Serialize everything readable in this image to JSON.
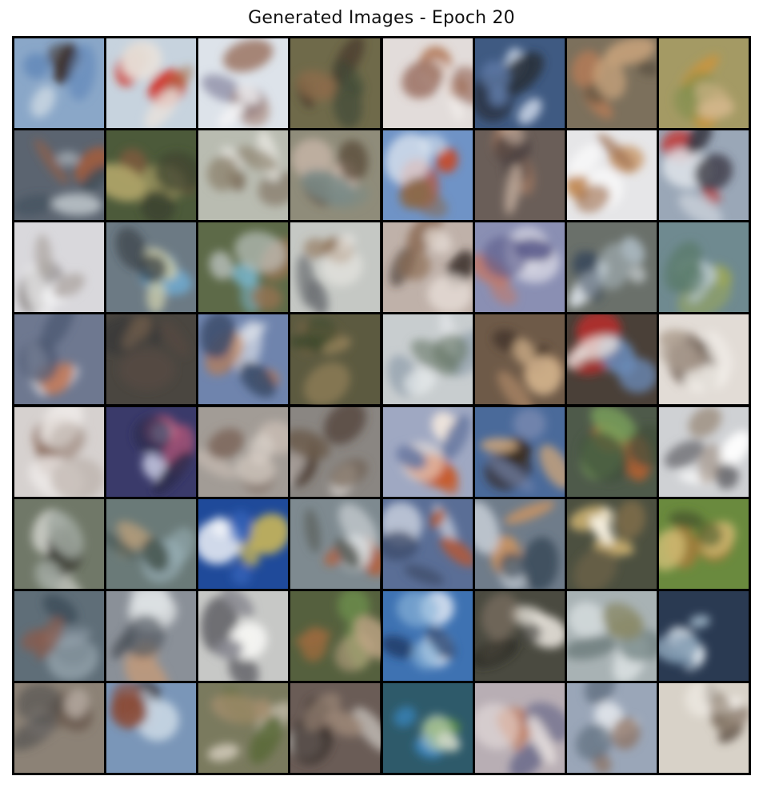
{
  "title": "Generated Images - Epoch 20",
  "grid": {
    "rows": 8,
    "cols": 8,
    "tiles": [
      {
        "bg": "#8aa7c8",
        "blobs": [
          "#c9d6e2",
          "#3b2f2a",
          "#5e85b8"
        ]
      },
      {
        "bg": "#c7d3de",
        "blobs": [
          "#d22a1c",
          "#a87047",
          "#e8e2dc"
        ]
      },
      {
        "bg": "#dde3ea",
        "blobs": [
          "#8f8ea8",
          "#a07a6a",
          "#f2f2f4"
        ]
      },
      {
        "bg": "#6f6a4a",
        "blobs": [
          "#4b3c2f",
          "#8c6b4a",
          "#3e4a36"
        ]
      },
      {
        "bg": "#e2dcda",
        "blobs": [
          "#b27653",
          "#f4f0ee",
          "#8b5a48"
        ]
      },
      {
        "bg": "#3f5a82",
        "blobs": [
          "#c8d4e6",
          "#2a2f3a",
          "#5f7ba8"
        ]
      },
      {
        "bg": "#7c705c",
        "blobs": [
          "#b07a56",
          "#5a5040",
          "#c9a47c"
        ]
      },
      {
        "bg": "#a49a64",
        "blobs": [
          "#c8953e",
          "#7e8e4a",
          "#d1b68a"
        ]
      },
      {
        "bg": "#5b6470",
        "blobs": [
          "#9f5c3c",
          "#3d4d5a",
          "#b8c0c6"
        ]
      },
      {
        "bg": "#4c5a3a",
        "blobs": [
          "#7a5a3e",
          "#b2a66a",
          "#3a4230"
        ]
      },
      {
        "bg": "#b9bcb1",
        "blobs": [
          "#7b6b5a",
          "#e4e2dc",
          "#8e8470"
        ]
      },
      {
        "bg": "#8f8c7a",
        "blobs": [
          "#d8c2b4",
          "#5a4a3a",
          "#7a8a86"
        ]
      },
      {
        "bg": "#6f93c6",
        "blobs": [
          "#c54a2a",
          "#e6ecf3",
          "#8a6a4a"
        ]
      },
      {
        "bg": "#6a5e58",
        "blobs": [
          "#a57a62",
          "#4a4040",
          "#c9b3a1"
        ]
      },
      {
        "bg": "#e6e6e8",
        "blobs": [
          "#c28a55",
          "#ffffff",
          "#a07050"
        ]
      },
      {
        "bg": "#9aa7b7",
        "blobs": [
          "#c92a22",
          "#e0e4ea",
          "#3b3a44"
        ]
      },
      {
        "bg": "#d9d8dc",
        "blobs": [
          "#7f7a78",
          "#f2f2f4",
          "#b0aaa6"
        ]
      },
      {
        "bg": "#6c7a84",
        "blobs": [
          "#6fb0d9",
          "#c6c8aa",
          "#2f3438"
        ]
      },
      {
        "bg": "#5d6a48",
        "blobs": [
          "#7ab8d0",
          "#9a7250",
          "#cfd6d8"
        ]
      },
      {
        "bg": "#c5c8c4",
        "blobs": [
          "#8a6a4c",
          "#eceae6",
          "#6b6e72"
        ]
      },
      {
        "bg": "#bfb1a9",
        "blobs": [
          "#3a2f28",
          "#8a6a52",
          "#e6dcd6"
        ]
      },
      {
        "bg": "#8a8fb3",
        "blobs": [
          "#c27a6a",
          "#e8e6ee",
          "#5a5a8a"
        ]
      },
      {
        "bg": "#6a706a",
        "blobs": [
          "#dde4ea",
          "#3b4a5c",
          "#aab8c0"
        ]
      },
      {
        "bg": "#6f8a90",
        "blobs": [
          "#9aa65a",
          "#b8c8ce",
          "#5a7a6a"
        ]
      },
      {
        "bg": "#6e7890",
        "blobs": [
          "#e9eef4",
          "#c07a5a",
          "#4a5670"
        ]
      },
      {
        "bg": "#4a4640",
        "blobs": [
          "#5a4a42",
          "#3a3a38",
          "#6a5a4a"
        ]
      },
      {
        "bg": "#6f84ad",
        "blobs": [
          "#e5e9ef",
          "#c27b4a",
          "#3b4c6a"
        ]
      },
      {
        "bg": "#5c5a40",
        "blobs": [
          "#8a6e4a",
          "#3e4a2e",
          "#a08a60"
        ]
      },
      {
        "bg": "#c8cdcf",
        "blobs": [
          "#8a9aa8",
          "#e9ecee",
          "#6a7a6a"
        ]
      },
      {
        "bg": "#6e5a48",
        "blobs": [
          "#b68e6a",
          "#4a3a2e",
          "#d0b08a"
        ]
      },
      {
        "bg": "#4a4038",
        "blobs": [
          "#d02a2a",
          "#6a8ab8",
          "#e4e0dc"
        ]
      },
      {
        "bg": "#e2dcd6",
        "blobs": [
          "#6a5a4e",
          "#f4f0ec",
          "#b2a496"
        ]
      },
      {
        "bg": "#d6d1cf",
        "blobs": [
          "#8a6a5a",
          "#f0ecea",
          "#b5aaa4"
        ]
      },
      {
        "bg": "#3a3a6a",
        "blobs": [
          "#c05a7a",
          "#e2e4f8",
          "#2a2a4a"
        ]
      },
      {
        "bg": "#a29c96",
        "blobs": [
          "#c9bdb4",
          "#7e6a5e",
          "#d8d0c8"
        ]
      },
      {
        "bg": "#8a8682",
        "blobs": [
          "#4a3a30",
          "#d8d4d0",
          "#6a5a4a"
        ]
      },
      {
        "bg": "#9fa8c2",
        "blobs": [
          "#c85a2a",
          "#f0e6dc",
          "#6a7aa2"
        ]
      },
      {
        "bg": "#4a6a9a",
        "blobs": [
          "#3a2a20",
          "#c9a37a",
          "#7a8ab0"
        ]
      },
      {
        "bg": "#4e5a4a",
        "blobs": [
          "#d0622a",
          "#7aa05a",
          "#3e4e3a"
        ]
      },
      {
        "bg": "#cfd1d4",
        "blobs": [
          "#ffffff",
          "#6a6a6e",
          "#9a8a7a"
        ]
      },
      {
        "bg": "#707868",
        "blobs": [
          "#e6e6e2",
          "#3a3a34",
          "#a0a8a0"
        ]
      },
      {
        "bg": "#6a7a78",
        "blobs": [
          "#c2a27a",
          "#9ab0b8",
          "#4a5a56"
        ]
      },
      {
        "bg": "#1f4a9a",
        "blobs": [
          "#f2d04a",
          "#ffffff",
          "#3a6ac2"
        ]
      },
      {
        "bg": "#7e8a90",
        "blobs": [
          "#c0582a",
          "#d6dcde",
          "#5a5e5a"
        ]
      },
      {
        "bg": "#5a6e96",
        "blobs": [
          "#d8dee8",
          "#b05a3a",
          "#3e4c6a"
        ]
      },
      {
        "bg": "#6f7c8a",
        "blobs": [
          "#e09a5a",
          "#c9d0d8",
          "#3a4a5a"
        ]
      },
      {
        "bg": "#4c5040",
        "blobs": [
          "#e8c67a",
          "#f6f0e0",
          "#7a6a4a"
        ]
      },
      {
        "bg": "#6a8a3e",
        "blobs": [
          "#b07a3a",
          "#d6c27a",
          "#4a5a2e"
        ]
      },
      {
        "bg": "#5f6e78",
        "blobs": [
          "#3a4a56",
          "#a0aeb8",
          "#8a5a4a"
        ]
      },
      {
        "bg": "#8a9098",
        "blobs": [
          "#e0e4e6",
          "#c29a7a",
          "#4a5058"
        ]
      },
      {
        "bg": "#c7c8c6",
        "blobs": [
          "#5a5a60",
          "#f4f4f2",
          "#8a8a92"
        ]
      },
      {
        "bg": "#55603e",
        "blobs": [
          "#9a6a3e",
          "#6a8a4a",
          "#c2a888"
        ]
      },
      {
        "bg": "#3e72b2",
        "blobs": [
          "#dce6f2",
          "#1e3a66",
          "#8ab4d8"
        ]
      },
      {
        "bg": "#4a4a40",
        "blobs": [
          "#e8e4dc",
          "#8a7a6a",
          "#2a2a26"
        ]
      },
      {
        "bg": "#a8b2b4",
        "blobs": [
          "#d8dee0",
          "#6a7a7a",
          "#8a8a6a"
        ]
      },
      {
        "bg": "#2a3a52",
        "blobs": [
          "#e6eef4",
          "#3a5a7a",
          "#9ab0c2"
        ]
      },
      {
        "bg": "#8c8276",
        "blobs": [
          "#6a5a4e",
          "#b4aaa0",
          "#4a4a4a"
        ]
      },
      {
        "bg": "#7a96b8",
        "blobs": [
          "#3a2a26",
          "#c6d4e2",
          "#8a4a36"
        ]
      },
      {
        "bg": "#7a7a5e",
        "blobs": [
          "#d8cfc0",
          "#5a6a3a",
          "#a89070"
        ]
      },
      {
        "bg": "#6a5c56",
        "blobs": [
          "#d8d6d0",
          "#3a302c",
          "#a08a7a"
        ]
      },
      {
        "bg": "#2e5a6a",
        "blobs": [
          "#3a8ac8",
          "#6aa040",
          "#d0d8c8"
        ]
      },
      {
        "bg": "#b8aeb4",
        "blobs": [
          "#c07a5a",
          "#6a6a8a",
          "#eae2e0"
        ]
      },
      {
        "bg": "#9aa6b8",
        "blobs": [
          "#e6eaee",
          "#8a6a56",
          "#5a6a7a"
        ]
      },
      {
        "bg": "#d8d2c8",
        "blobs": [
          "#5a4e42",
          "#f4f0ea",
          "#8a7a6a"
        ]
      }
    ]
  }
}
